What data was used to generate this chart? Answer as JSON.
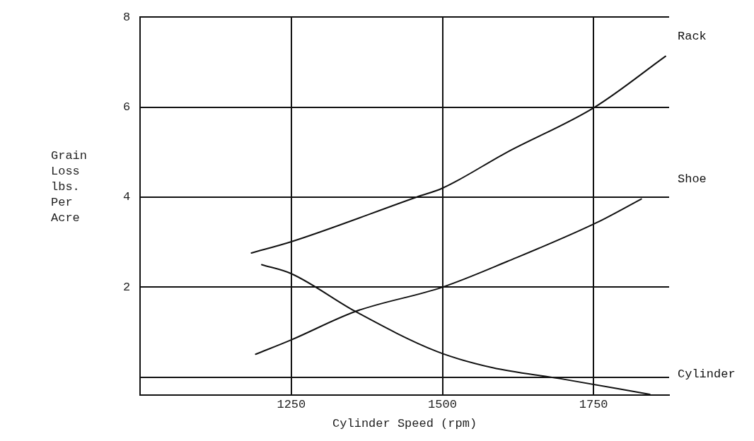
{
  "chart_data": {
    "type": "line",
    "xlabel": "Cylinder Speed (rpm)",
    "ylabel": "Grain Loss lbs. Per Acre",
    "xlim": [
      1000,
      1875
    ],
    "xticks": [
      1250,
      1500,
      1750
    ],
    "ylim": [
      -0.4,
      8
    ],
    "yticks": [
      {
        "value": 0,
        "label": null
      },
      2,
      4,
      6,
      8
    ],
    "grid": true,
    "legend": false,
    "marker": "none",
    "line_style": "solid",
    "series": [
      {
        "name": "Rack",
        "color": "#111111",
        "x": [
          1184,
          1250,
          1457,
          1500,
          1607,
          1752,
          1869
        ],
        "values": [
          2.76,
          3.01,
          4.0,
          4.2,
          5.0,
          6.0,
          7.13
        ]
      },
      {
        "name": "Shoe",
        "color": "#111111",
        "x": [
          1191,
          1250,
          1356,
          1500,
          1607,
          1756,
          1829
        ],
        "values": [
          0.51,
          0.83,
          1.46,
          2.0,
          2.57,
          3.44,
          3.96
        ]
      },
      {
        "name": "Cylinder",
        "color": "#111111",
        "x": [
          1201,
          1250,
          1356,
          1491,
          1583,
          1694,
          1843
        ],
        "values": [
          2.5,
          2.3,
          1.46,
          0.57,
          0.21,
          -0.03,
          -0.38
        ]
      }
    ]
  }
}
